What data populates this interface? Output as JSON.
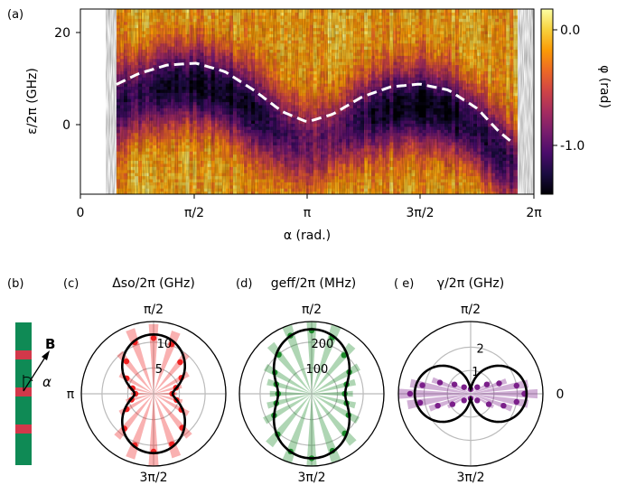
{
  "colors": {
    "colormap": [
      "#000004",
      "#1b0c41",
      "#4a0c6b",
      "#781c6d",
      "#a52c60",
      "#cf4446",
      "#ed6925",
      "#fb9b06",
      "#f7d13d",
      "#fcffa4"
    ],
    "delta_so": "#ee2222",
    "g_eff": "#1b8a2a",
    "gamma": "#7b1f8a",
    "fit": "#000000",
    "dashed": "#ffffff",
    "wire": "#0f8a55",
    "gate": "#d2384a",
    "polar_grid": "#bbbbbb"
  },
  "panels": {
    "a": "(a)",
    "b": "(b)",
    "c": "(c)",
    "d": "(d)",
    "e": "( e)"
  },
  "titles": {
    "c": "Δso/2π (GHz)",
    "d": "geff/2π (MHz)",
    "e": "γ/2π (GHz)"
  },
  "axis_a": {
    "xlabel": "α (rad.)",
    "ylabel": "ε/2π (GHz)",
    "xticks": [
      "0",
      "π/2",
      "π",
      "3π/2",
      "2π"
    ],
    "yticks": [
      "20",
      "0"
    ],
    "cbar_label": "φ (rad)",
    "cbar_ticks": [
      "0.0",
      "-1.0"
    ]
  },
  "polar_labels": {
    "top": "π/2",
    "left": "π",
    "bottom": "3π/2",
    "right": "0"
  },
  "sketch": {
    "field_label": "B",
    "angle_label": "α"
  },
  "chart_data": [
    {
      "type": "heatmap",
      "panel": "a",
      "xlabel": "α (rad.)",
      "ylabel": "ε/2π (GHz)",
      "xlim": [
        0,
        6.2832
      ],
      "ylim": [
        -15,
        25
      ],
      "data_x_range": [
        0.5,
        6.05
      ],
      "colorbar": {
        "label": "φ (rad)",
        "range": [
          -1.4,
          0.2
        ],
        "ticks": [
          0.0,
          -1.0
        ]
      },
      "dashed_curve": {
        "alpha": [
          0.5,
          0.8,
          1.2,
          1.6,
          2.0,
          2.4,
          2.8,
          3.14,
          3.5,
          3.9,
          4.3,
          4.7,
          5.1,
          5.5,
          5.8,
          6.0
        ],
        "epsilon": [
          8.7,
          11.0,
          12.9,
          13.3,
          11.5,
          7.5,
          2.8,
          0.6,
          2.3,
          6.0,
          8.2,
          8.8,
          7.5,
          3.5,
          -1.5,
          -4.0
        ]
      },
      "dark_regions": [
        {
          "alpha_center": 1.5,
          "epsilon_center": 7,
          "note_free": true
        },
        {
          "alpha_center": 4.6,
          "epsilon_center": 2,
          "note_free": true
        }
      ]
    },
    {
      "type": "scatter",
      "panel": "c",
      "polar": true,
      "rlim": [
        0,
        14
      ],
      "rticks": [
        5,
        10
      ],
      "series": [
        {
          "kind": "data",
          "points_deg_r": [
            [
              90,
              10.8
            ],
            [
              70,
              10.2
            ],
            [
              110,
              10.6
            ],
            [
              50,
              8.0
            ],
            [
              130,
              8.2
            ],
            [
              150,
              6.0
            ],
            [
              165,
              4.2
            ],
            [
              180,
              3.5
            ],
            [
              195,
              4.4
            ],
            [
              210,
              6.0
            ],
            [
              230,
              8.8
            ],
            [
              250,
              10.6
            ],
            [
              270,
              11.2
            ],
            [
              290,
              10.4
            ],
            [
              310,
              8.6
            ],
            [
              330,
              6.2
            ],
            [
              345,
              4.6
            ],
            [
              0,
              3.6
            ],
            [
              15,
              4.5
            ],
            [
              30,
              6.2
            ]
          ]
        },
        {
          "kind": "fit",
          "model": "r = sqrt(a^2 cos^2 t + b^2 sin^2 t)",
          "a": 3.7,
          "b": 11.5
        }
      ]
    },
    {
      "type": "scatter",
      "panel": "d",
      "polar": true,
      "rlim": [
        0,
        280
      ],
      "rticks": [
        100,
        200
      ],
      "series": [
        {
          "kind": "data",
          "points_deg_r": [
            [
              90,
              245
            ],
            [
              70,
              232
            ],
            [
              110,
              240
            ],
            [
              50,
              195
            ],
            [
              130,
              198
            ],
            [
              150,
              165
            ],
            [
              165,
              142
            ],
            [
              180,
              130
            ],
            [
              195,
              142
            ],
            [
              210,
              168
            ],
            [
              230,
              205
            ],
            [
              250,
              238
            ],
            [
              270,
              250
            ],
            [
              290,
              235
            ],
            [
              310,
              200
            ],
            [
              330,
              165
            ],
            [
              345,
              140
            ],
            [
              0,
              128
            ],
            [
              15,
              140
            ],
            [
              30,
              168
            ]
          ]
        },
        {
          "kind": "fit",
          "a": 130,
          "b": 250
        }
      ]
    },
    {
      "type": "scatter",
      "panel": "e",
      "polar": true,
      "rlim": [
        0,
        3.1
      ],
      "rticks": [
        1,
        2
      ],
      "series": [
        {
          "kind": "data",
          "points_deg_r": [
            [
              0,
              2.3
            ],
            [
              10,
              2.0
            ],
            [
              20,
              1.3
            ],
            [
              30,
              0.8
            ],
            [
              45,
              0.4
            ],
            [
              90,
              0.2
            ],
            [
              135,
              0.4
            ],
            [
              150,
              0.8
            ],
            [
              160,
              1.4
            ],
            [
              170,
              2.1
            ],
            [
              180,
              2.6
            ],
            [
              190,
              2.2
            ],
            [
              200,
              1.5
            ],
            [
              210,
              0.9
            ],
            [
              225,
              0.4
            ],
            [
              270,
              0.2
            ],
            [
              315,
              0.4
            ],
            [
              330,
              0.9
            ],
            [
              340,
              1.5
            ],
            [
              350,
              2.0
            ]
          ]
        },
        {
          "kind": "fit",
          "model": "r = sqrt(a^2 cos^2 t + b^2 sin^2 t)",
          "a": 2.4,
          "b": 0.2
        }
      ]
    }
  ]
}
